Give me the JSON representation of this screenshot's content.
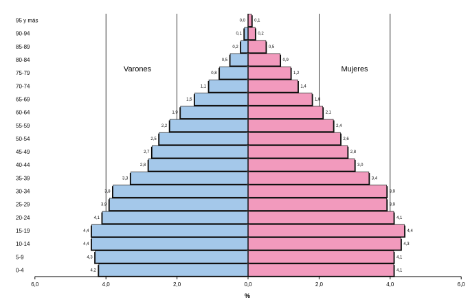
{
  "chart_data": {
    "type": "bar",
    "orientation": "horizontal",
    "layout": "population pyramid",
    "categories": [
      "0-4",
      "5-9",
      "10-14",
      "15-19",
      "20-24",
      "25-29",
      "30-34",
      "35-39",
      "40-44",
      "45-49",
      "50-54",
      "55-59",
      "60-64",
      "65-69",
      "70-74",
      "75-79",
      "80-84",
      "85-89",
      "90-94",
      "95 y más"
    ],
    "series": [
      {
        "name": "Varones",
        "side": "left",
        "color": "#a4c8ea",
        "values": [
          4.2,
          4.3,
          4.4,
          4.4,
          4.1,
          3.9,
          3.8,
          3.3,
          2.8,
          2.7,
          2.5,
          2.2,
          1.9,
          1.5,
          1.1,
          0.8,
          0.5,
          0.2,
          0.1,
          0.0
        ],
        "value_labels": [
          "4,2",
          "4,3",
          "4,4",
          "4,4",
          "4,1",
          "3,9",
          "3,8",
          "3,3",
          "2,8",
          "2,7",
          "2,5",
          "2,2",
          "1,9",
          "1,5",
          "1,1",
          "0,8",
          "0,5",
          "0,2",
          "0,1",
          "0,0"
        ]
      },
      {
        "name": "Mujeres",
        "side": "right",
        "color": "#f29abd",
        "values": [
          4.1,
          4.1,
          4.3,
          4.4,
          4.1,
          3.9,
          3.9,
          3.4,
          3.0,
          2.8,
          2.6,
          2.4,
          2.1,
          1.8,
          1.4,
          1.2,
          0.9,
          0.5,
          0.2,
          0.1
        ],
        "value_labels": [
          "4,1",
          "4,1",
          "4,3",
          "4,4",
          "4,1",
          "3,9",
          "3,9",
          "3,4",
          "3,0",
          "2,8",
          "2,6",
          "2,4",
          "2,1",
          "1,8",
          "1,4",
          "1,2",
          "0,9",
          "0,5",
          "0,2",
          "0,1"
        ]
      }
    ],
    "x_ticks": [
      "6,0",
      "4,0",
      "2,0",
      "0,0",
      "2,0",
      "4,0",
      "6,0"
    ],
    "xlabel": "%",
    "ylabel": "",
    "xlim": [
      -6,
      6
    ],
    "gridlines": "vertical at 2 and 4 on each side",
    "legend": "series names printed inside each half",
    "colors": {
      "axis": "#000000",
      "grid": "#000000",
      "background": "#ffffff"
    }
  }
}
